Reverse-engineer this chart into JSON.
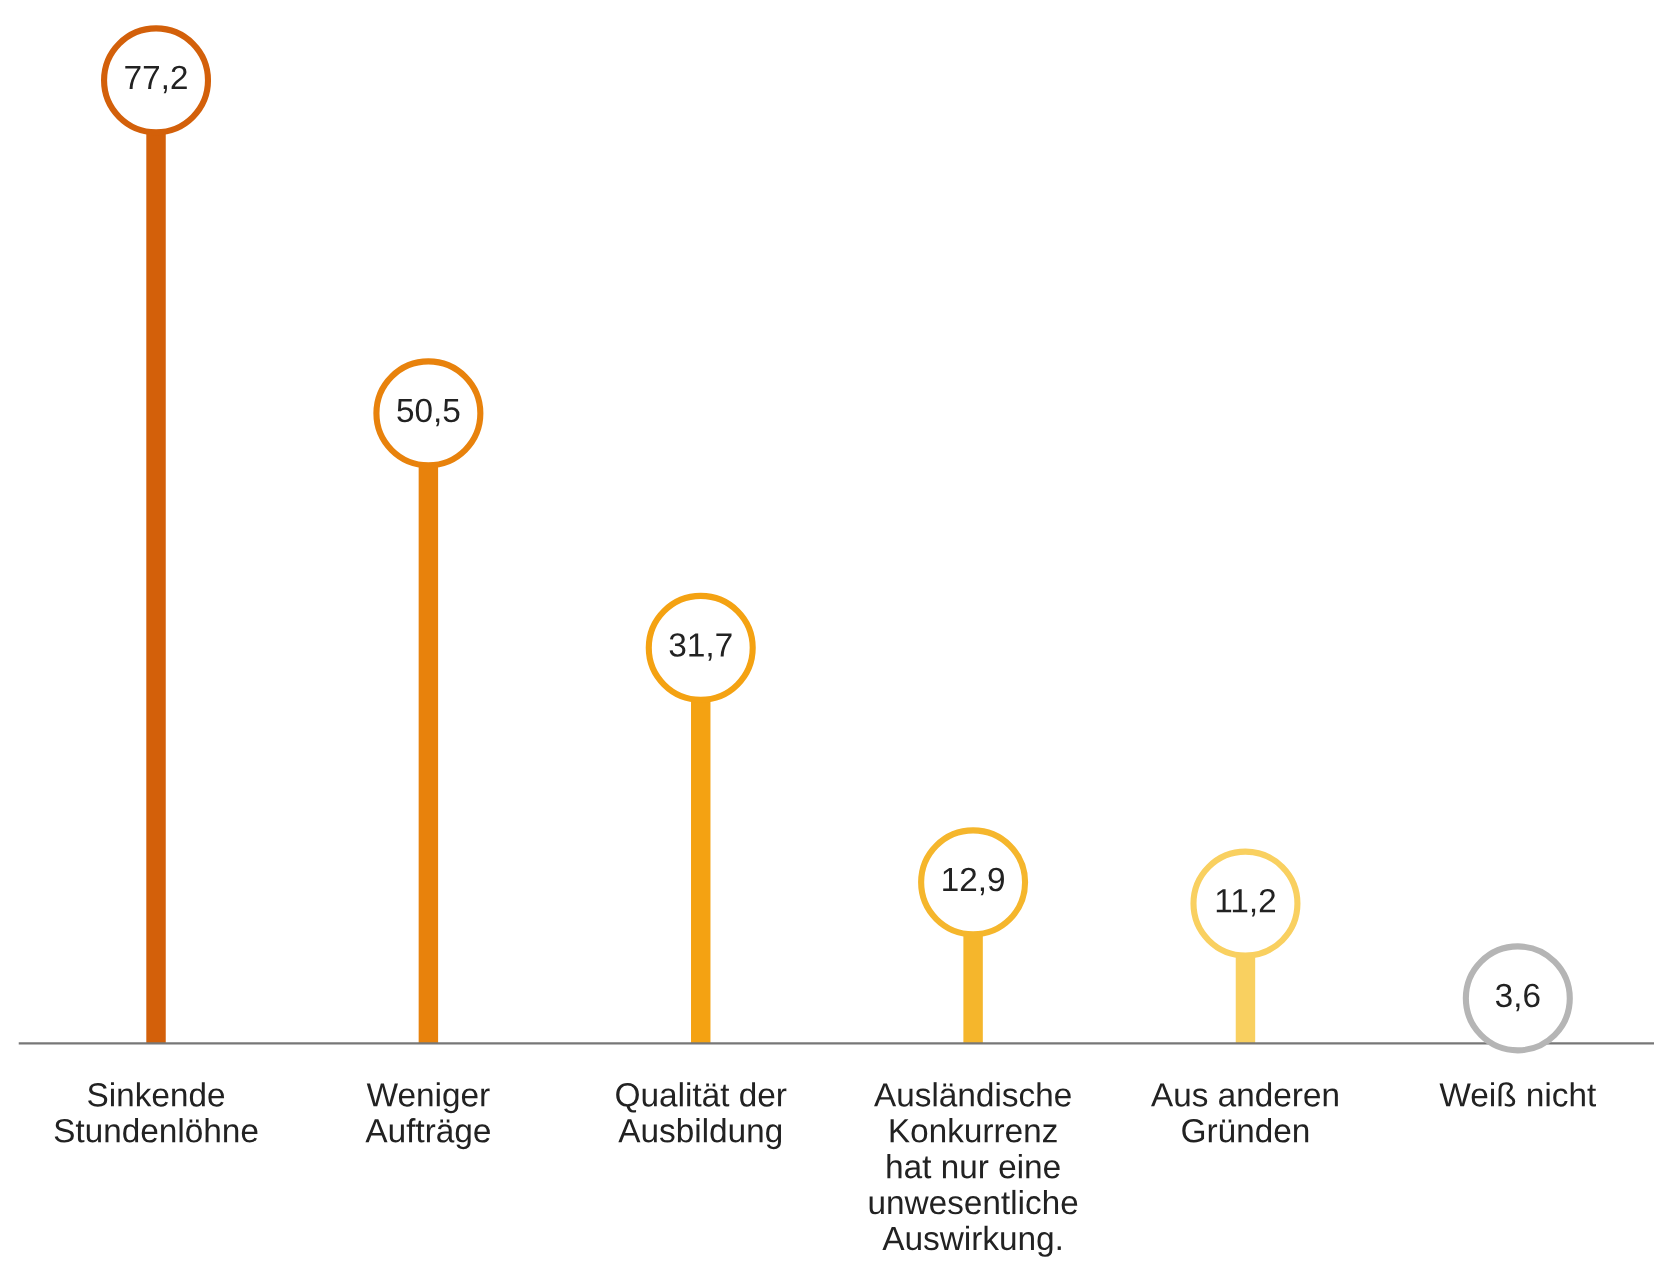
{
  "chart_data": {
    "type": "lollipop",
    "categories": [
      "Sinkende\nStundenlöhne",
      "Weniger\nAufträge",
      "Qualität der\nAusbildung",
      "Ausländische\nKonkurrenz\nhat nur eine\nunwesentliche\nAuswirkung.",
      "Aus anderen\nGründen",
      "Weiß nicht"
    ],
    "values": [
      77.2,
      50.5,
      31.7,
      12.9,
      11.2,
      3.6
    ],
    "value_labels": [
      "77,2",
      "50,5",
      "31,7",
      "12,9",
      "11,2",
      "3,6"
    ],
    "colors": [
      "#d3600a",
      "#e8820c",
      "#f4a212",
      "#f5b62c",
      "#f9d060",
      "#b5b5b5"
    ],
    "marker": "circle"
  }
}
